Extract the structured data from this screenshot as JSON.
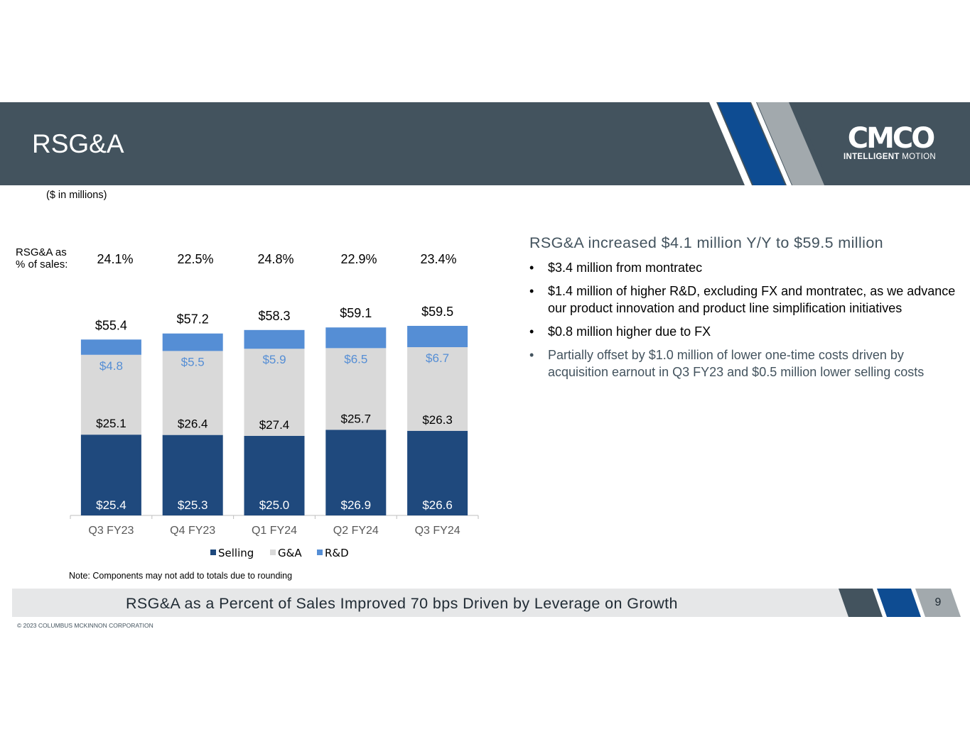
{
  "header": {
    "title": "RSG&A",
    "logo_word": "CMCO",
    "logo_tagline_bold": "INTELLIGENT",
    "logo_tagline": "MOTION"
  },
  "units_note": "($ in millions)",
  "percent_label": "RSG&A as\n% of sales:",
  "percent_of_sales": [
    "24.1%",
    "22.5%",
    "24.8%",
    "22.9%",
    "23.4%"
  ],
  "chart_data": {
    "type": "bar",
    "stacked": true,
    "categories": [
      "Q3 FY23",
      "Q4 FY23",
      "Q1 FY24",
      "Q2 FY24",
      "Q3 FY24"
    ],
    "series": [
      {
        "name": "Selling",
        "values": [
          25.4,
          25.3,
          25.0,
          26.9,
          26.6
        ],
        "labels": [
          "$25.4",
          "$25.3",
          "$25.0",
          "$26.9",
          "$26.6"
        ],
        "color": "#1f497d",
        "label_color": "#ffffff"
      },
      {
        "name": "G&A",
        "values": [
          25.1,
          26.4,
          27.4,
          25.7,
          26.3
        ],
        "labels": [
          "$25.1",
          "$26.4",
          "$27.4",
          "$25.7",
          "$26.3"
        ],
        "color": "#d9d9d9",
        "label_color": "#000000"
      },
      {
        "name": "R&D",
        "values": [
          4.8,
          5.5,
          5.9,
          6.5,
          6.7
        ],
        "labels": [
          "$4.8",
          "$5.5",
          "$5.9",
          "$6.5",
          "$6.7"
        ],
        "color": "#558ed5",
        "label_color": "#558ed5"
      }
    ],
    "totals": [
      55.4,
      57.2,
      58.3,
      59.1,
      59.5
    ],
    "total_labels": [
      "$55.4",
      "$57.2",
      "$58.3",
      "$59.1",
      "$59.5"
    ],
    "legend_position": "bottom",
    "grid": false
  },
  "commentary": {
    "headline": "RSG&A increased $4.1 million Y/Y to $59.5 million",
    "bullets": [
      "$3.4 million from montratec",
      "$1.4 million of higher R&D, excluding FX and montratec, as we advance our product innovation and product line simplification initiatives",
      "$0.8 million higher due to FX",
      "Partially offset by $1.0 million of lower one-time costs driven by acquisition earnout in Q3 FY23 and $0.5 million lower selling costs"
    ]
  },
  "note": "Note: Components may not add to totals due to rounding",
  "footer": {
    "banner": "RSG&A as a Percent of Sales Improved 70 bps Driven by Leverage on Growth",
    "page_number": "9",
    "copyright": "© 2023 COLUMBUS MCKINNON CORPORATION"
  },
  "colors": {
    "header_bg": "#43535e",
    "accent_blue": "#0e4c92",
    "accent_gray": "#a2a9ad",
    "footer_band": "#e6e7e8"
  }
}
